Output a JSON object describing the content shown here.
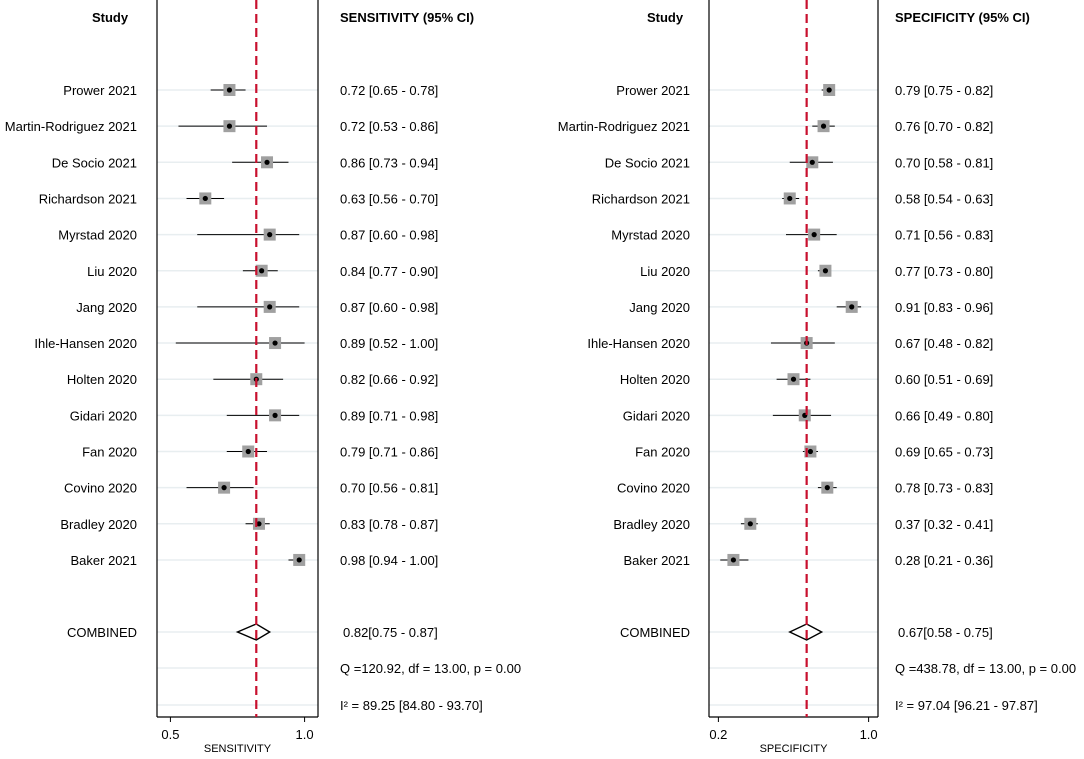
{
  "colors": {
    "refline": "#c8102e",
    "box": "#a0a0a0",
    "grid": "#e8eef0",
    "ink": "#000000"
  },
  "chart_data": [
    {
      "type": "forest",
      "study_header": "Study",
      "estimate_header": "SENSITIVITY (95% CI)",
      "xlabel": "SENSITIVITY",
      "xlim": [
        0.45,
        1.05
      ],
      "ticks": [
        {
          "v": 0.5,
          "label": "0.5"
        },
        {
          "v": 1.0,
          "label": "1.0"
        }
      ],
      "reference_line": 0.82,
      "studies": [
        {
          "name": "Prower 2021",
          "est": 0.72,
          "lo": 0.65,
          "hi": 0.78,
          "text": "0.72 [0.65 - 0.78]"
        },
        {
          "name": "Martin-Rodriguez 2021",
          "est": 0.72,
          "lo": 0.53,
          "hi": 0.86,
          "text": "0.72 [0.53 - 0.86]"
        },
        {
          "name": "De Socio 2021",
          "est": 0.86,
          "lo": 0.73,
          "hi": 0.94,
          "text": "0.86 [0.73 - 0.94]"
        },
        {
          "name": "Richardson 2021",
          "est": 0.63,
          "lo": 0.56,
          "hi": 0.7,
          "text": "0.63 [0.56 - 0.70]"
        },
        {
          "name": "Myrstad 2020",
          "est": 0.87,
          "lo": 0.6,
          "hi": 0.98,
          "text": "0.87 [0.60 - 0.98]"
        },
        {
          "name": "Liu 2020",
          "est": 0.84,
          "lo": 0.77,
          "hi": 0.9,
          "text": "0.84 [0.77 - 0.90]"
        },
        {
          "name": "Jang 2020",
          "est": 0.87,
          "lo": 0.6,
          "hi": 0.98,
          "text": "0.87 [0.60 - 0.98]"
        },
        {
          "name": "Ihle-Hansen 2020",
          "est": 0.89,
          "lo": 0.52,
          "hi": 1.0,
          "text": "0.89 [0.52 - 1.00]"
        },
        {
          "name": "Holten 2020",
          "est": 0.82,
          "lo": 0.66,
          "hi": 0.92,
          "text": "0.82 [0.66 - 0.92]"
        },
        {
          "name": "Gidari 2020",
          "est": 0.89,
          "lo": 0.71,
          "hi": 0.98,
          "text": "0.89 [0.71 - 0.98]"
        },
        {
          "name": "Fan 2020",
          "est": 0.79,
          "lo": 0.71,
          "hi": 0.86,
          "text": "0.79 [0.71 - 0.86]"
        },
        {
          "name": "Covino 2020",
          "est": 0.7,
          "lo": 0.56,
          "hi": 0.81,
          "text": "0.70 [0.56 - 0.81]"
        },
        {
          "name": "Bradley 2020",
          "est": 0.83,
          "lo": 0.78,
          "hi": 0.87,
          "text": "0.83 [0.78 - 0.87]"
        },
        {
          "name": "Baker 2021",
          "est": 0.98,
          "lo": 0.94,
          "hi": 1.0,
          "text": "0.98 [0.94 - 1.00]"
        }
      ],
      "combined": {
        "label": "COMBINED",
        "est": 0.82,
        "lo": 0.75,
        "hi": 0.87,
        "text": "0.82[0.75 - 0.87]"
      },
      "q_text": "Q =120.92, df = 13.00, p =  0.00",
      "i2_text": "I² = 89.25 [84.80 - 93.70]"
    },
    {
      "type": "forest",
      "study_header": "Study",
      "estimate_header": "SPECIFICITY (95% CI)",
      "xlabel": "SPECIFICITY",
      "xlim": [
        0.15,
        1.05
      ],
      "ticks": [
        {
          "v": 0.2,
          "label": "0.2"
        },
        {
          "v": 1.0,
          "label": "1.0"
        }
      ],
      "reference_line": 0.67,
      "studies": [
        {
          "name": "Prower 2021",
          "est": 0.79,
          "lo": 0.75,
          "hi": 0.82,
          "text": "0.79 [0.75 - 0.82]"
        },
        {
          "name": "Martin-Rodriguez 2021",
          "est": 0.76,
          "lo": 0.7,
          "hi": 0.82,
          "text": "0.76 [0.70 - 0.82]"
        },
        {
          "name": "De Socio 2021",
          "est": 0.7,
          "lo": 0.58,
          "hi": 0.81,
          "text": "0.70 [0.58 - 0.81]"
        },
        {
          "name": "Richardson 2021",
          "est": 0.58,
          "lo": 0.54,
          "hi": 0.63,
          "text": "0.58 [0.54 - 0.63]"
        },
        {
          "name": "Myrstad 2020",
          "est": 0.71,
          "lo": 0.56,
          "hi": 0.83,
          "text": "0.71 [0.56 - 0.83]"
        },
        {
          "name": "Liu 2020",
          "est": 0.77,
          "lo": 0.73,
          "hi": 0.8,
          "text": "0.77 [0.73 - 0.80]"
        },
        {
          "name": "Jang 2020",
          "est": 0.91,
          "lo": 0.83,
          "hi": 0.96,
          "text": "0.91 [0.83 - 0.96]"
        },
        {
          "name": "Ihle-Hansen 2020",
          "est": 0.67,
          "lo": 0.48,
          "hi": 0.82,
          "text": "0.67 [0.48 - 0.82]"
        },
        {
          "name": "Holten 2020",
          "est": 0.6,
          "lo": 0.51,
          "hi": 0.69,
          "text": "0.60 [0.51 - 0.69]"
        },
        {
          "name": "Gidari 2020",
          "est": 0.66,
          "lo": 0.49,
          "hi": 0.8,
          "text": "0.66 [0.49 - 0.80]"
        },
        {
          "name": "Fan 2020",
          "est": 0.69,
          "lo": 0.65,
          "hi": 0.73,
          "text": "0.69 [0.65 - 0.73]"
        },
        {
          "name": "Covino 2020",
          "est": 0.78,
          "lo": 0.73,
          "hi": 0.83,
          "text": "0.78 [0.73 - 0.83]"
        },
        {
          "name": "Bradley 2020",
          "est": 0.37,
          "lo": 0.32,
          "hi": 0.41,
          "text": "0.37 [0.32 - 0.41]"
        },
        {
          "name": "Baker 2021",
          "est": 0.28,
          "lo": 0.21,
          "hi": 0.36,
          "text": "0.28 [0.21 - 0.36]"
        }
      ],
      "combined": {
        "label": "COMBINED",
        "est": 0.67,
        "lo": 0.58,
        "hi": 0.75,
        "text": "0.67[0.58 - 0.75]"
      },
      "q_text": "Q =438.78, df = 13.00, p =  0.00",
      "i2_text": "I² = 97.04 [96.21 - 97.87]"
    }
  ]
}
